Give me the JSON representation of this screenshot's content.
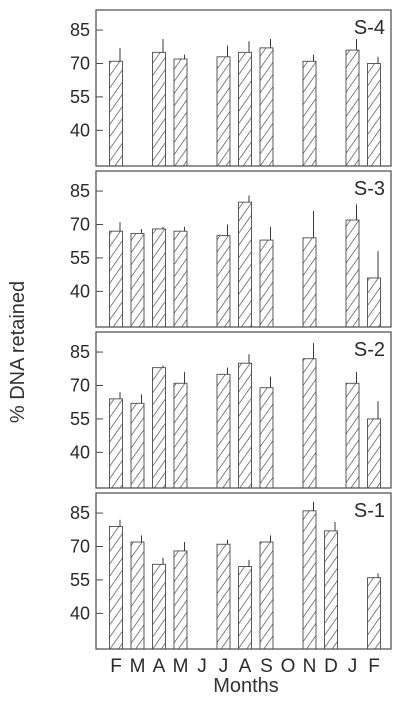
{
  "figure": {
    "ylabel": "% DNA retained",
    "xlabel": "Months",
    "colors": {
      "ink": "#2a2a2a",
      "hatch": "#3a3a3a",
      "frame": "#4a4a4a",
      "error": "#3a3a3a"
    }
  },
  "chart_data": [
    {
      "type": "bar",
      "panel": "S-4",
      "categories": [
        "F",
        "M",
        "A",
        "M",
        "J",
        "J",
        "A",
        "S",
        "O",
        "N",
        "D",
        "J",
        "F"
      ],
      "values": [
        71,
        null,
        75,
        72,
        null,
        73,
        75,
        77,
        null,
        71,
        null,
        76,
        70
      ],
      "errors": [
        6,
        null,
        6,
        2,
        null,
        5,
        5,
        4,
        null,
        3,
        null,
        5,
        3
      ],
      "ylim": [
        24,
        94
      ],
      "yticks": [
        85,
        70,
        55,
        40
      ],
      "pattern": "hatched"
    },
    {
      "type": "bar",
      "panel": "S-3",
      "categories": [
        "F",
        "M",
        "A",
        "M",
        "J",
        "J",
        "A",
        "S",
        "O",
        "N",
        "D",
        "J",
        "F"
      ],
      "values": [
        67,
        66,
        68,
        67,
        null,
        65,
        80,
        63,
        null,
        64,
        null,
        72,
        46
      ],
      "errors": [
        4,
        2,
        1,
        2,
        null,
        5,
        3,
        6,
        null,
        12,
        null,
        7,
        12
      ],
      "ylim": [
        24,
        94
      ],
      "yticks": [
        85,
        70,
        55,
        40
      ],
      "pattern": "hatched"
    },
    {
      "type": "bar",
      "panel": "S-2",
      "categories": [
        "F",
        "M",
        "A",
        "M",
        "J",
        "J",
        "A",
        "S",
        "O",
        "N",
        "D",
        "J",
        "F"
      ],
      "values": [
        64,
        62,
        78,
        71,
        null,
        75,
        80,
        69,
        null,
        82,
        null,
        71,
        55
      ],
      "errors": [
        3,
        4,
        1,
        5,
        null,
        3,
        4,
        5,
        null,
        7,
        null,
        5,
        8
      ],
      "ylim": [
        24,
        94
      ],
      "yticks": [
        85,
        70,
        55,
        40
      ],
      "pattern": "hatched"
    },
    {
      "type": "bar",
      "panel": "S-1",
      "categories": [
        "F",
        "M",
        "A",
        "M",
        "J",
        "J",
        "A",
        "S",
        "O",
        "N",
        "D",
        "J",
        "F"
      ],
      "values": [
        79,
        72,
        62,
        68,
        null,
        71,
        61,
        72,
        null,
        86,
        77,
        null,
        56
      ],
      "errors": [
        3,
        3,
        3,
        4,
        null,
        2,
        3,
        3,
        null,
        4,
        4,
        null,
        2
      ],
      "ylim": [
        24,
        94
      ],
      "yticks": [
        85,
        70,
        55,
        40
      ],
      "pattern": "hatched"
    }
  ]
}
